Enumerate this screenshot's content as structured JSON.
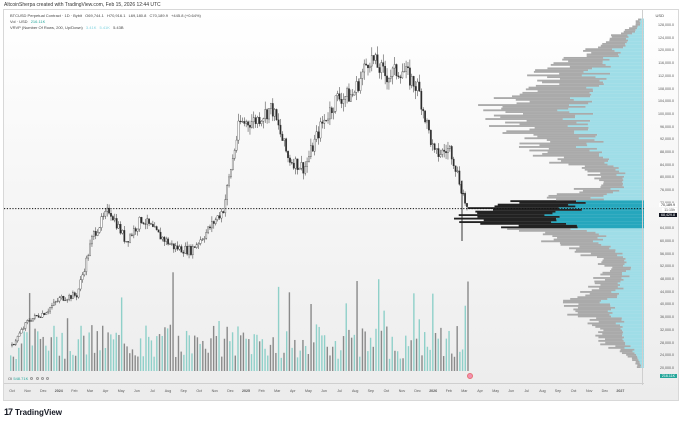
{
  "credit": "AltcoinSherpa created with TradingView.com, Feb 15, 2026 12:44 UTC",
  "legend": {
    "symbol": "BTCUSD Perpetual Contract · 1D · Bybit",
    "open": "O69,744.1",
    "high": "H70,916.1",
    "low": "L69,180.8",
    "close": "C70,189.9",
    "change": "+445.8 (+0.64%)",
    "volume_label": "Vol · USD",
    "volume_value": "216.11K",
    "vrvp_label": "VRVP (Number Of Rows, 200, Up/Down)",
    "vrvp_up": "3.41K",
    "vrvp_down": "5.41K",
    "vrvp_total": "5.43B"
  },
  "oi": {
    "label": "OI",
    "value": "548.71K"
  },
  "axis": {
    "currency": "USD",
    "current_price": "70,189.9",
    "countdown": "11:15h",
    "poc_price": "68,429.8",
    "volume_tag": "216.11K"
  },
  "footer": {
    "logo": "17",
    "brand": "TradingView"
  },
  "colors": {
    "up_candle": "#ffffff",
    "down_candle": "#2b2b2b",
    "vol_up": "#8fd0c9",
    "vol_down": "#8a8a8a",
    "vrvp_up": "#9fdde7",
    "vrvp_down": "#aaaaaa",
    "vrvp_va_up": "#26a7bd",
    "vrvp_va_down": "#222222",
    "price_tag_bg": "#ffffff",
    "poc_tag_bg": "#131722",
    "vol_tag_bg": "#26a69a"
  },
  "chart_data": {
    "type": "candlestick",
    "title": "BTCUSD Perpetual Contract · 1D · Bybit",
    "ylabel": "USD",
    "ylim": [
      16000,
      132000
    ],
    "y_ticks": [
      128000,
      124000,
      120000,
      116000,
      112000,
      108000,
      104000,
      100000,
      96000,
      92000,
      88000,
      84000,
      80000,
      76000,
      72000,
      64000,
      60000,
      56000,
      52000,
      48000,
      44000,
      40000,
      36000,
      32000,
      28000,
      24000,
      20000
    ],
    "x_ticks": [
      "Oct",
      "Nov",
      "Dec",
      "2024",
      "Feb",
      "Mar",
      "Apr",
      "May",
      "Jun",
      "Jul",
      "Aug",
      "Sep",
      "Oct",
      "Nov",
      "Dec",
      "2025",
      "Feb",
      "Mar",
      "Apr",
      "May",
      "Jun",
      "Jul",
      "Aug",
      "Sep",
      "Oct",
      "Nov",
      "Dec",
      "2026",
      "Feb",
      "Mar",
      "Apr",
      "May",
      "Jun",
      "Jul",
      "Aug",
      "Sep",
      "Oct",
      "Nov",
      "Dec",
      "2027"
    ],
    "price_path": {
      "months": [
        "2023-10",
        "2023-11",
        "2023-12",
        "2024-01",
        "2024-02",
        "2024-03",
        "2024-04",
        "2024-05",
        "2024-06",
        "2024-07",
        "2024-08",
        "2024-09",
        "2024-10",
        "2024-11",
        "2024-12",
        "2025-01",
        "2025-02",
        "2025-03",
        "2025-04",
        "2025-05",
        "2025-06",
        "2025-07",
        "2025-08",
        "2025-09",
        "2025-10",
        "2025-11",
        "2025-12",
        "2026-01",
        "2026-02"
      ],
      "close": [
        27000,
        35000,
        37500,
        42000,
        43000,
        62000,
        70000,
        60000,
        67000,
        62000,
        58000,
        57000,
        63000,
        70000,
        97000,
        98000,
        102000,
        86000,
        83000,
        96000,
        105000,
        106000,
        118000,
        112000,
        114000,
        108000,
        87000,
        89000,
        70190
      ]
    },
    "last_candle": {
      "open": 69744.1,
      "high": 70916.1,
      "low": 69180.8,
      "close": 70189.9,
      "change": 445.8,
      "change_pct": 0.64
    },
    "volume_last": "216.11K",
    "open_interest": "548.71K",
    "vrvp": {
      "rows": 200,
      "mode": "Up/Down",
      "up": "3.41K",
      "down": "5.41K",
      "total": "5.43B",
      "poc_price": 68429.8
    }
  }
}
